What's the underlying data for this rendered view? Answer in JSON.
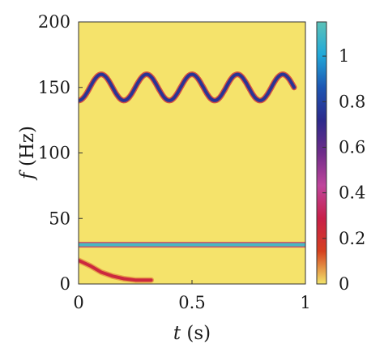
{
  "chart_data": {
    "type": "heatmap",
    "title": "",
    "xlabel_symbol": "t",
    "xlabel_unit": " (s)",
    "ylabel_symbol": "f",
    "ylabel_unit": " (Hz)",
    "xlim": [
      0,
      1
    ],
    "ylim": [
      0,
      200
    ],
    "x_ticks": [
      "0",
      "0.5",
      "1"
    ],
    "y_ticks": [
      "0",
      "50",
      "100",
      "150",
      "200"
    ],
    "colorbar": {
      "range": [
        0,
        1.15
      ],
      "ticks": [
        "0",
        "0.2",
        "0.4",
        "0.6",
        "0.8",
        "1"
      ],
      "colors": [
        "#f2e46a",
        "#d6401f",
        "#c81f49",
        "#c0459c",
        "#6f2c8a",
        "#2c2a8c",
        "#1d56b3",
        "#21a9d9",
        "#5cc2b8"
      ]
    },
    "background_color": "#f5e36b",
    "ridges": [
      {
        "name": "",
        "kind": "sinusoid",
        "center_hz": 150,
        "amplitude_hz": 10,
        "cycles_per_s": 5,
        "t_start": 0,
        "t_end": 0.95,
        "intensity": 0.75
      },
      {
        "name": "",
        "kind": "constant",
        "center_hz": 30,
        "t_start": 0,
        "t_end": 1,
        "intensity": 1.1
      },
      {
        "name": "",
        "kind": "decay",
        "points": [
          [
            0,
            18
          ],
          [
            0.05,
            14
          ],
          [
            0.1,
            9
          ],
          [
            0.15,
            6
          ],
          [
            0.2,
            4
          ],
          [
            0.25,
            3
          ],
          [
            0.32,
            3
          ]
        ],
        "intensity": 0.25
      }
    ]
  }
}
